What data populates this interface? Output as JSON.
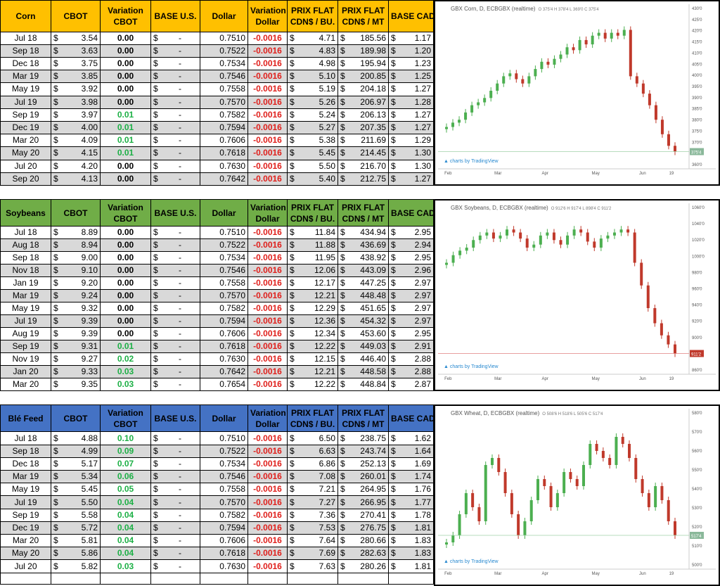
{
  "headers": {
    "cbot": "CBOT",
    "variation_cbot_1": "Variation",
    "variation_cbot_2": "CBOT",
    "base_us": "BASE U.S.",
    "dollar": "Dollar",
    "variation_dollar_1": "Variation",
    "variation_dollar_2": "Dollar",
    "prix_flat_bu_1": "PRIX FLAT",
    "prix_flat_bu_2": "CDN$ / BU.",
    "prix_flat_mt_1": "PRIX FLAT",
    "prix_flat_mt_2": "CDN$ / MT",
    "base_cad": "BASE CAD"
  },
  "currency_symbol": "$",
  "base_us_value": "-",
  "colors": {
    "corn_header": "#ffc000",
    "soy_header": "#70ad47",
    "wheat_header": "#4472c4",
    "negative": "#e0201c",
    "positive": "#1db046",
    "bull_candle": "#4caf50",
    "bear_candle": "#c0392b"
  },
  "sections": [
    {
      "name": "Corn",
      "rows": [
        [
          "Jul 18",
          "3.54",
          "0.00",
          "0.7510",
          "-0.0016",
          "4.71",
          "185.56",
          "1.17"
        ],
        [
          "Sep 18",
          "3.63",
          "0.00",
          "0.7522",
          "-0.0016",
          "4.83",
          "189.98",
          "1.20"
        ],
        [
          "Dec 18",
          "3.75",
          "0.00",
          "0.7534",
          "-0.0016",
          "4.98",
          "195.94",
          "1.23"
        ],
        [
          "Mar 19",
          "3.85",
          "0.00",
          "0.7546",
          "-0.0016",
          "5.10",
          "200.85",
          "1.25"
        ],
        [
          "May 19",
          "3.92",
          "0.00",
          "0.7558",
          "-0.0016",
          "5.19",
          "204.18",
          "1.27"
        ],
        [
          "Jul 19",
          "3.98",
          "0.00",
          "0.7570",
          "-0.0016",
          "5.26",
          "206.97",
          "1.28"
        ],
        [
          "Sep 19",
          "3.97",
          "0.01",
          "0.7582",
          "-0.0016",
          "5.24",
          "206.13",
          "1.27"
        ],
        [
          "Dec 19",
          "4.00",
          "0.01",
          "0.7594",
          "-0.0016",
          "5.27",
          "207.35",
          "1.27"
        ],
        [
          "Mar 20",
          "4.09",
          "0.01",
          "0.7606",
          "-0.0016",
          "5.38",
          "211.69",
          "1.29"
        ],
        [
          "May 20",
          "4.15",
          "0.01",
          "0.7618",
          "-0.0016",
          "5.45",
          "214.45",
          "1.30"
        ],
        [
          "Jul 20",
          "4.20",
          "0.00",
          "0.7630",
          "-0.0016",
          "5.50",
          "216.70",
          "1.30"
        ],
        [
          "Sep 20",
          "4.13",
          "0.00",
          "0.7642",
          "-0.0016",
          "5.40",
          "212.75",
          "1.27"
        ]
      ],
      "chart": {
        "title": "GBX Corn, D, ECBGBX (realtime)",
        "ohlc": "O 375'4 H 378'4 L 369'0 C 375'4",
        "price_label": "375'4",
        "y_ticks": [
          "430'0",
          "425'0",
          "420'0",
          "415'0",
          "410'0",
          "405'0",
          "400'0",
          "395'0",
          "390'0",
          "385'0",
          "380'0",
          "375'0",
          "370'0",
          "365'0",
          "360'0"
        ],
        "x_ticks": [
          "Feb",
          "Mar",
          "Apr",
          "May",
          "Jun",
          "19"
        ],
        "logo": "charts by TradingView"
      }
    },
    {
      "name": "Soybeans",
      "rows": [
        [
          "Jul 18",
          "8.89",
          "0.00",
          "0.7510",
          "-0.0016",
          "11.84",
          "434.94",
          "2.95"
        ],
        [
          "Aug 18",
          "8.94",
          "0.00",
          "0.7522",
          "-0.0016",
          "11.88",
          "436.69",
          "2.94"
        ],
        [
          "Sep 18",
          "9.00",
          "0.00",
          "0.7534",
          "-0.0016",
          "11.95",
          "438.92",
          "2.95"
        ],
        [
          "Nov 18",
          "9.10",
          "0.00",
          "0.7546",
          "-0.0016",
          "12.06",
          "443.09",
          "2.96"
        ],
        [
          "Jan 19",
          "9.20",
          "0.00",
          "0.7558",
          "-0.0016",
          "12.17",
          "447.25",
          "2.97"
        ],
        [
          "Mar 19",
          "9.24",
          "0.00",
          "0.7570",
          "-0.0016",
          "12.21",
          "448.48",
          "2.97"
        ],
        [
          "May 19",
          "9.32",
          "0.00",
          "0.7582",
          "-0.0016",
          "12.29",
          "451.65",
          "2.97"
        ],
        [
          "Jul 19",
          "9.39",
          "0.00",
          "0.7594",
          "-0.0016",
          "12.36",
          "454.32",
          "2.97"
        ],
        [
          "Aug 19",
          "9.39",
          "0.00",
          "0.7606",
          "-0.0016",
          "12.34",
          "453.60",
          "2.95"
        ],
        [
          "Sep 19",
          "9.31",
          "0.01",
          "0.7618",
          "-0.0016",
          "12.22",
          "449.03",
          "2.91"
        ],
        [
          "Nov 19",
          "9.27",
          "0.02",
          "0.7630",
          "-0.0016",
          "12.15",
          "446.40",
          "2.88"
        ],
        [
          "Jan 20",
          "9.33",
          "0.03",
          "0.7642",
          "-0.0016",
          "12.21",
          "448.58",
          "2.88"
        ],
        [
          "Mar 20",
          "9.35",
          "0.03",
          "0.7654",
          "-0.0016",
          "12.22",
          "448.84",
          "2.87"
        ]
      ],
      "chart": {
        "title": "GBX Soybeans, D, ECBGBX (realtime)",
        "ohlc": "O 912'6 H 917'4 L 898'4 C 911'2",
        "price_label": "911'2",
        "y_ticks": [
          "1060'0",
          "1040'0",
          "1020'0",
          "1000'0",
          "980'0",
          "960'0",
          "940'0",
          "920'0",
          "900'0",
          "880'0",
          "860'0"
        ],
        "x_ticks": [
          "Feb",
          "Mar",
          "Apr",
          "May",
          "Jun",
          "19"
        ],
        "logo": "charts by TradingView"
      }
    },
    {
      "name": "Blé Feed",
      "rows": [
        [
          "Jul 18",
          "4.88",
          "0.10",
          "0.7510",
          "-0.0016",
          "6.50",
          "238.75",
          "1.62"
        ],
        [
          "Sep 18",
          "4.99",
          "0.09",
          "0.7522",
          "-0.0016",
          "6.63",
          "243.74",
          "1.64"
        ],
        [
          "Dec 18",
          "5.17",
          "0.07",
          "0.7534",
          "-0.0016",
          "6.86",
          "252.13",
          "1.69"
        ],
        [
          "Mar 19",
          "5.34",
          "0.06",
          "0.7546",
          "-0.0016",
          "7.08",
          "260.01",
          "1.74"
        ],
        [
          "May 19",
          "5.45",
          "0.05",
          "0.7558",
          "-0.0016",
          "7.21",
          "264.95",
          "1.76"
        ],
        [
          "Jul 19",
          "5.50",
          "0.04",
          "0.7570",
          "-0.0016",
          "7.27",
          "266.95",
          "1.77"
        ],
        [
          "Sep 19",
          "5.58",
          "0.04",
          "0.7582",
          "-0.0016",
          "7.36",
          "270.41",
          "1.78"
        ],
        [
          "Dec 19",
          "5.72",
          "0.04",
          "0.7594",
          "-0.0016",
          "7.53",
          "276.75",
          "1.81"
        ],
        [
          "Mar 20",
          "5.81",
          "0.04",
          "0.7606",
          "-0.0016",
          "7.64",
          "280.66",
          "1.83"
        ],
        [
          "May 20",
          "5.86",
          "0.04",
          "0.7618",
          "-0.0016",
          "7.69",
          "282.63",
          "1.83"
        ],
        [
          "Jul 20",
          "5.82",
          "0.03",
          "0.7630",
          "-0.0016",
          "7.63",
          "280.26",
          "1.81"
        ]
      ],
      "chart": {
        "title": "GBX Wheat, D, ECBGBX (realtime)",
        "ohlc": "O 508'6 H 518'6 L 505'6 C 517'4",
        "price_label": "517'4",
        "y_ticks": [
          "580'0",
          "570'0",
          "560'0",
          "550'0",
          "540'0",
          "530'0",
          "520'0",
          "510'0",
          "500'0"
        ],
        "x_ticks": [
          "Feb",
          "Mar",
          "Apr",
          "May",
          "Jun",
          "19"
        ],
        "logo": "charts by TradingView"
      }
    }
  ]
}
